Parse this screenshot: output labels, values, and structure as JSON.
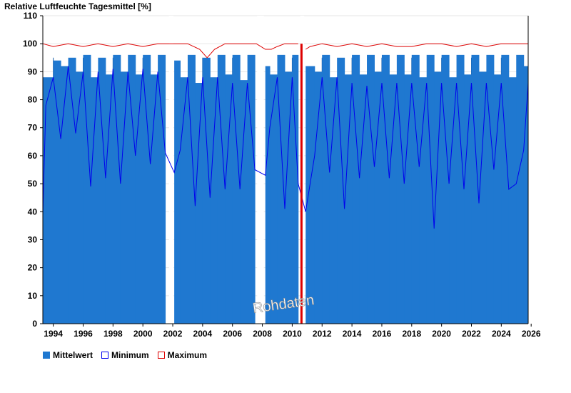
{
  "chart_data": {
    "type": "bar",
    "title": "Relative Luftfeuchte Tagesmittel [%]",
    "xlabel": "",
    "ylabel": "",
    "xlim": [
      1993.3,
      2025.8
    ],
    "ylim": [
      0,
      110
    ],
    "x_ticks": [
      "1994",
      "1996",
      "1998",
      "2000",
      "2002",
      "2004",
      "2006",
      "2008",
      "2010",
      "2012",
      "2014",
      "2016",
      "2018",
      "2020",
      "2022",
      "2024",
      "2026"
    ],
    "y_ticks": [
      "0",
      "10",
      "20",
      "30",
      "40",
      "50",
      "60",
      "70",
      "80",
      "90",
      "100",
      "110"
    ],
    "grid": "y",
    "watermark": "Rohdaten",
    "data_gaps": [
      [
        2001.75,
        2002.05
      ],
      [
        2007.65,
        2008.1
      ],
      [
        2010.55,
        2010.8
      ]
    ],
    "series": [
      {
        "name": "Mittelwert",
        "color": "#1f78d0",
        "x": [
          1993.3,
          1994.0,
          1994.5,
          1995.0,
          1995.5,
          1996.0,
          1996.5,
          1997.0,
          1997.5,
          1998.0,
          1998.5,
          1999.0,
          1999.5,
          2000.0,
          2000.5,
          2001.0,
          2001.5,
          2002.1,
          2002.5,
          2003.0,
          2003.5,
          2004.0,
          2004.5,
          2005.0,
          2005.5,
          2006.0,
          2006.5,
          2007.0,
          2007.5,
          2008.2,
          2008.5,
          2009.0,
          2009.5,
          2010.0,
          2010.4,
          2010.9,
          2011.5,
          2012.0,
          2012.5,
          2013.0,
          2013.5,
          2014.0,
          2014.5,
          2015.0,
          2015.5,
          2016.0,
          2016.5,
          2017.0,
          2017.5,
          2018.0,
          2018.5,
          2019.0,
          2019.5,
          2020.0,
          2020.5,
          2021.0,
          2021.5,
          2022.0,
          2022.5,
          2023.0,
          2023.5,
          2024.0,
          2024.5,
          2025.0,
          2025.5,
          2025.8
        ],
        "values": [
          88,
          94,
          92,
          95,
          90,
          96,
          88,
          95,
          89,
          96,
          90,
          96,
          89,
          96,
          89,
          96,
          90,
          94,
          88,
          96,
          86,
          95,
          88,
          96,
          89,
          96,
          87,
          96,
          90,
          92,
          89,
          96,
          90,
          96,
          90,
          92,
          90,
          96,
          88,
          95,
          89,
          96,
          89,
          96,
          90,
          96,
          89,
          96,
          89,
          96,
          88,
          96,
          90,
          96,
          88,
          96,
          89,
          96,
          90,
          96,
          89,
          96,
          88,
          96,
          92,
          96
        ]
      },
      {
        "name": "Minimum",
        "color": "#0000ee",
        "x": [
          1993.3,
          1993.5,
          1994.0,
          1994.5,
          1995.0,
          1995.5,
          1996.0,
          1996.5,
          1997.0,
          1997.5,
          1998.0,
          1998.5,
          1999.0,
          1999.5,
          2000.0,
          2000.5,
          2001.0,
          2001.5,
          2002.1,
          2002.5,
          2003.0,
          2003.5,
          2004.0,
          2004.5,
          2005.0,
          2005.5,
          2006.0,
          2006.5,
          2007.0,
          2007.5,
          2008.2,
          2008.5,
          2009.0,
          2009.5,
          2010.0,
          2010.4,
          2010.9,
          2011.5,
          2012.0,
          2012.5,
          2013.0,
          2013.5,
          2014.0,
          2014.5,
          2015.0,
          2015.5,
          2016.0,
          2016.5,
          2017.0,
          2017.5,
          2018.0,
          2018.5,
          2019.0,
          2019.5,
          2020.0,
          2020.5,
          2021.0,
          2021.5,
          2022.0,
          2022.5,
          2023.0,
          2023.5,
          2024.0,
          2024.5,
          2025.0,
          2025.5,
          2025.8
        ],
        "values": [
          39,
          78,
          88,
          66,
          92,
          68,
          90,
          49,
          90,
          52,
          91,
          50,
          90,
          60,
          91,
          57,
          90,
          61,
          54,
          62,
          88,
          42,
          88,
          45,
          88,
          48,
          86,
          48,
          86,
          55,
          53,
          70,
          88,
          41,
          88,
          50,
          40,
          60,
          88,
          54,
          88,
          41,
          86,
          52,
          85,
          56,
          86,
          52,
          86,
          50,
          86,
          56,
          86,
          34,
          86,
          50,
          86,
          48,
          86,
          43,
          86,
          55,
          86,
          48,
          50,
          62,
          86
        ]
      },
      {
        "name": "Maximum",
        "color": "#dd0000",
        "x": [
          1993.3,
          1994.0,
          1995.0,
          1996.0,
          1997.0,
          1998.0,
          1999.0,
          2000.0,
          2001.0,
          2001.7,
          2002.1,
          2003.0,
          2003.8,
          2004.3,
          2004.8,
          2005.5,
          2006.5,
          2007.6,
          2008.2,
          2008.6,
          2009.0,
          2009.5,
          2010.0,
          2010.4,
          2010.6,
          2010.9,
          2011.2,
          2012.0,
          2013.0,
          2014.0,
          2015.0,
          2016.0,
          2017.0,
          2018.0,
          2019.0,
          2020.0,
          2021.0,
          2022.0,
          2023.0,
          2024.0,
          2025.0,
          2025.8
        ],
        "values": [
          100,
          99,
          100,
          99,
          100,
          99,
          100,
          99,
          100,
          100,
          100,
          100,
          98,
          95,
          98,
          100,
          100,
          100,
          98,
          98,
          99,
          100,
          100,
          100,
          100,
          98,
          99,
          100,
          99,
          100,
          99,
          100,
          99,
          99,
          100,
          100,
          99,
          100,
          99,
          100,
          100,
          100
        ]
      }
    ]
  },
  "legend": {
    "items": [
      {
        "label": "Mittelwert",
        "fill": "#1f78d0",
        "border": "#1f78d0"
      },
      {
        "label": "Minimum",
        "fill": "#ffffff",
        "border": "#0000ee"
      },
      {
        "label": "Maximum",
        "fill": "#ffffff",
        "border": "#dd0000"
      }
    ]
  }
}
